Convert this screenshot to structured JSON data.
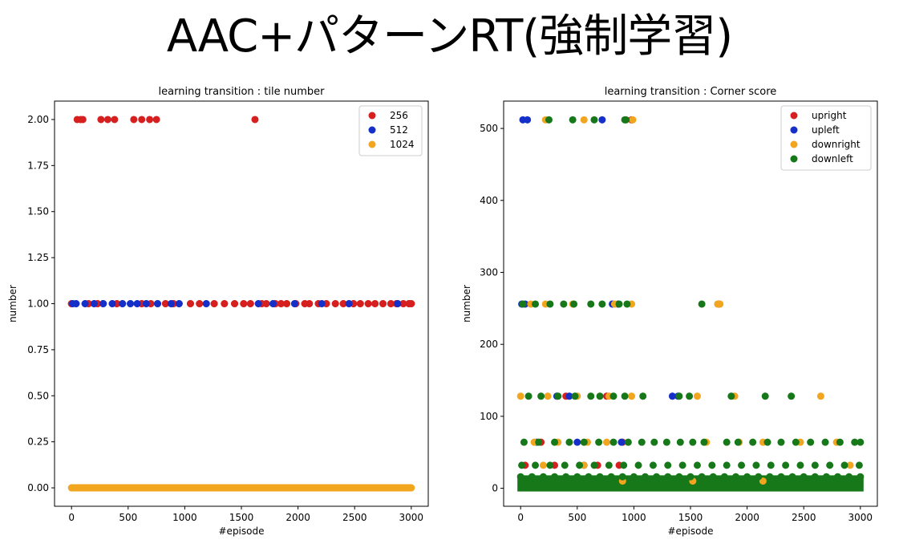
{
  "page": {
    "title": "AAC+パターンRT(強制学習)"
  },
  "colors": {
    "red": "#d62020",
    "blue": "#1530c8",
    "orange": "#f2a51e",
    "green": "#17781a"
  },
  "chart_data": [
    {
      "type": "scatter",
      "title": "learning transition : tile number",
      "xlabel": "#episode",
      "ylabel": "number",
      "xlim": [
        -150,
        3150
      ],
      "ylim": [
        -0.1,
        2.1
      ],
      "xticks": [
        0,
        500,
        1000,
        1500,
        2000,
        2500,
        3000
      ],
      "yticks": [
        0.0,
        0.25,
        0.5,
        0.75,
        1.0,
        1.25,
        1.5,
        1.75,
        2.0
      ],
      "ytick_labels": [
        "0.00",
        "0.25",
        "0.50",
        "0.75",
        "1.00",
        "1.25",
        "1.50",
        "1.75",
        "2.00"
      ],
      "grid": false,
      "legend_position": "top-right",
      "series": [
        {
          "name": "256",
          "color": "#d62020",
          "x": [
            50,
            80,
            100,
            260,
            320,
            380,
            550,
            620,
            690,
            750,
            1620,
            0,
            150,
            230,
            400,
            620,
            700,
            830,
            900,
            1050,
            1130,
            1260,
            1350,
            1440,
            1520,
            1580,
            1680,
            1720,
            1800,
            1850,
            1900,
            1980,
            2060,
            2100,
            2180,
            2250,
            2330,
            2400,
            2490,
            2550,
            2620,
            2680,
            2750,
            2820,
            2870,
            2930,
            2980,
            3000
          ],
          "y": [
            2,
            2,
            2,
            2,
            2,
            2,
            2,
            2,
            2,
            2,
            2,
            1,
            1,
            1,
            1,
            1,
            1,
            1,
            1,
            1,
            1,
            1,
            1,
            1,
            1,
            1,
            1,
            1,
            1,
            1,
            1,
            1,
            1,
            1,
            1,
            1,
            1,
            1,
            1,
            1,
            1,
            1,
            1,
            1,
            1,
            1,
            1,
            1
          ]
        },
        {
          "name": "512",
          "color": "#1530c8",
          "x": [
            10,
            40,
            120,
            200,
            280,
            360,
            450,
            520,
            580,
            660,
            760,
            880,
            950,
            1190,
            1650,
            1780,
            1970,
            2210,
            2450,
            2880
          ],
          "y": [
            1,
            1,
            1,
            1,
            1,
            1,
            1,
            1,
            1,
            1,
            1,
            1,
            1,
            1,
            1,
            1,
            1,
            1,
            1,
            1
          ]
        },
        {
          "name": "1024",
          "color": "#f2a51e",
          "x": [
            0,
            100,
            200,
            300,
            400,
            500,
            600,
            700,
            800,
            900,
            1000,
            1100,
            1200,
            1300,
            1400,
            1500,
            1600,
            1700,
            1800,
            1900,
            2000,
            2100,
            2200,
            2300,
            2400,
            2500,
            2600,
            2700,
            2800,
            2900,
            3000
          ],
          "y": [
            0,
            0,
            0,
            0,
            0,
            0,
            0,
            0,
            0,
            0,
            0,
            0,
            0,
            0,
            0,
            0,
            0,
            0,
            0,
            0,
            0,
            0,
            0,
            0,
            0,
            0,
            0,
            0,
            0,
            0,
            0
          ]
        }
      ]
    },
    {
      "type": "scatter",
      "title": "learning transition : Corner score",
      "xlabel": "#episode",
      "ylabel": "number",
      "xlim": [
        -150,
        3150
      ],
      "ylim": [
        -25,
        538
      ],
      "xticks": [
        0,
        500,
        1000,
        1500,
        2000,
        2500,
        3000
      ],
      "yticks": [
        0,
        100,
        200,
        300,
        400,
        500
      ],
      "ytick_labels": [
        "0",
        "100",
        "200",
        "300",
        "400",
        "500"
      ],
      "grid": false,
      "legend_position": "top-right",
      "series": [
        {
          "name": "upright",
          "color": "#d62020",
          "x": [
            980,
            1750,
            400,
            760,
            180,
            900,
            40,
            300,
            680,
            870
          ],
          "y": [
            512,
            256,
            128,
            128,
            64,
            64,
            32,
            32,
            32,
            32
          ]
        },
        {
          "name": "upleft",
          "color": "#1530c8",
          "x": [
            20,
            60,
            720,
            10,
            40,
            810,
            860,
            320,
            430,
            1340,
            1390,
            140,
            500,
            890,
            560
          ],
          "y": [
            512,
            512,
            512,
            256,
            256,
            256,
            256,
            128,
            128,
            128,
            128,
            64,
            64,
            64,
            32
          ]
        },
        {
          "name": "downright",
          "color": "#f2a51e",
          "x": [
            220,
            560,
            990,
            90,
            220,
            460,
            830,
            980,
            1760,
            1740,
            0,
            240,
            500,
            780,
            980,
            1560,
            1890,
            2650,
            120,
            330,
            590,
            760,
            1640,
            1930,
            2140,
            2470,
            2790,
            200,
            560,
            2910,
            900,
            1520,
            2140
          ],
          "y": [
            512,
            512,
            512,
            256,
            256,
            256,
            256,
            256,
            256,
            256,
            128,
            128,
            128,
            128,
            128,
            128,
            128,
            128,
            64,
            64,
            64,
            64,
            64,
            64,
            64,
            64,
            64,
            32,
            32,
            32,
            10,
            10,
            10
          ]
        },
        {
          "name": "downleft",
          "color": "#17781a",
          "x": [
            250,
            460,
            650,
            920,
            930,
            20,
            130,
            260,
            380,
            470,
            620,
            720,
            870,
            940,
            1600,
            70,
            180,
            330,
            480,
            620,
            700,
            820,
            920,
            1080,
            1400,
            1490,
            1860,
            2160,
            2390,
            30,
            160,
            300,
            430,
            560,
            690,
            820,
            950,
            1070,
            1180,
            1290,
            1410,
            1520,
            1620,
            1820,
            1920,
            2050,
            2180,
            2300,
            2430,
            2560,
            2690,
            2820,
            2950,
            3000,
            10,
            130,
            260,
            390,
            520,
            650,
            780,
            910,
            1040,
            1170,
            1300,
            1430,
            1560,
            1690,
            1820,
            1950,
            2080,
            2210,
            2340,
            2470,
            2600,
            2730,
            2860,
            2990,
            0,
            100,
            200,
            300,
            400,
            500,
            600,
            700,
            800,
            900,
            1000,
            1100,
            1200,
            1300,
            1400,
            1500,
            1600,
            1700,
            1800,
            1900,
            2000,
            2100,
            2200,
            2300,
            2400,
            2500,
            2600,
            2700,
            2800,
            2900,
            3000
          ],
          "y": [
            512,
            512,
            512,
            512,
            512,
            256,
            256,
            256,
            256,
            256,
            256,
            256,
            256,
            256,
            256,
            128,
            128,
            128,
            128,
            128,
            128,
            128,
            128,
            128,
            128,
            128,
            128,
            128,
            128,
            64,
            64,
            64,
            64,
            64,
            64,
            64,
            64,
            64,
            64,
            64,
            64,
            64,
            64,
            64,
            64,
            64,
            64,
            64,
            64,
            64,
            64,
            64,
            64,
            64,
            32,
            32,
            32,
            32,
            32,
            32,
            32,
            32,
            32,
            32,
            32,
            32,
            32,
            32,
            32,
            32,
            32,
            32,
            32,
            32,
            32,
            32,
            32,
            32,
            16,
            16,
            16,
            16,
            16,
            16,
            16,
            16,
            16,
            16,
            16,
            16,
            16,
            16,
            16,
            16,
            16,
            16,
            16,
            16,
            16,
            16,
            16,
            16,
            16,
            16,
            16,
            16,
            16,
            16,
            16
          ]
        }
      ]
    }
  ]
}
